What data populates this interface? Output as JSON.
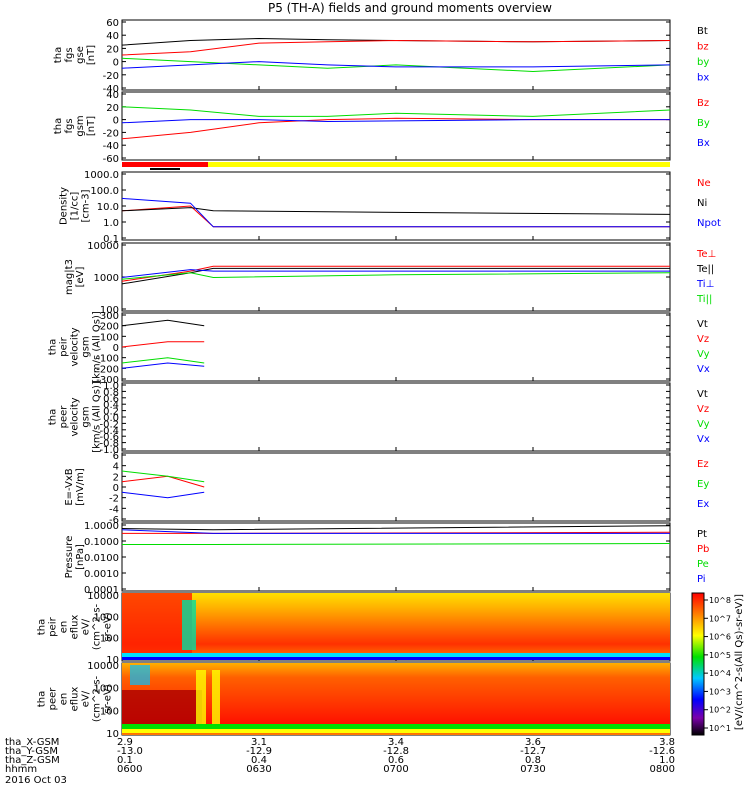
{
  "title": "P5 (TH-A) fields and ground moments overview",
  "date_label": "2016 Oct 03",
  "colors": {
    "black": "#000000",
    "red": "#ff0000",
    "green": "#00dd00",
    "blue": "#0000ff",
    "purple": "#9900cc",
    "yellow": "#ffff00"
  },
  "panels": [
    {
      "id": "fgs-btot",
      "ylabel": [
        "tha",
        "fgs",
        "gse",
        "[nT]"
      ],
      "ticks": [
        "60",
        "40",
        "20",
        "0",
        "-20",
        "-40"
      ],
      "legend": [
        {
          "label": "Bt",
          "color": "#000000"
        },
        {
          "label": "bz",
          "color": "#ff0000"
        },
        {
          "label": "by",
          "color": "#00dd00"
        },
        {
          "label": "bx",
          "color": "#0000ff"
        }
      ]
    },
    {
      "id": "fgs-gsm",
      "ylabel": [
        "tha",
        "fgs",
        "gsm",
        "[nT]"
      ],
      "ticks": [
        "40",
        "20",
        "0",
        "-20",
        "-40",
        "-60"
      ],
      "legend": [
        {
          "label": "Bz",
          "color": "#ff0000"
        },
        {
          "label": "By",
          "color": "#00dd00"
        },
        {
          "label": "Bx",
          "color": "#0000ff"
        }
      ]
    },
    {
      "id": "density",
      "ylabel": [
        "Density",
        "[1/cc]",
        "[cm-3]"
      ],
      "ticks": [
        "1000.0",
        "100.0",
        "10.0",
        "1.0",
        "0.1"
      ],
      "legend": [
        {
          "label": "Ne",
          "color": "#ff0000"
        },
        {
          "label": "Ni",
          "color": "#000000"
        },
        {
          "label": "Npot",
          "color": "#0000ff"
        }
      ]
    },
    {
      "id": "temperature",
      "ylabel": [
        "mag|t3",
        "[eV]"
      ],
      "ticks": [
        "10000",
        "1000",
        "100"
      ],
      "legend": [
        {
          "label": "Te⊥",
          "color": "#ff0000"
        },
        {
          "label": "Te||",
          "color": "#000000"
        },
        {
          "label": "Ti⊥",
          "color": "#0000ff"
        },
        {
          "label": "Ti||",
          "color": "#00dd00"
        }
      ]
    },
    {
      "id": "peir-velocity",
      "ylabel": [
        "tha",
        "peir",
        "velocity",
        "gsm",
        "[km/s (All Qs)]"
      ],
      "ticks": [
        "300",
        "200",
        "100",
        "0",
        "-100",
        "-200",
        "-300"
      ],
      "legend": [
        {
          "label": "Vt",
          "color": "#000000"
        },
        {
          "label": "Vz",
          "color": "#ff0000"
        },
        {
          "label": "Vy",
          "color": "#00dd00"
        },
        {
          "label": "Vx",
          "color": "#0000ff"
        }
      ]
    },
    {
      "id": "peer-velocity",
      "ylabel": [
        "tha",
        "peer",
        "velocity",
        "gsm",
        "[km/s (All Qs)]"
      ],
      "ticks": [
        "1.0",
        "0.8",
        "0.6",
        "0.4",
        "0.2",
        "0.0",
        "-0.2",
        "-0.4",
        "-0.6",
        "-0.8",
        "-1.0"
      ],
      "legend": [
        {
          "label": "Vt",
          "color": "#000000"
        },
        {
          "label": "Vz",
          "color": "#ff0000"
        },
        {
          "label": "Vy",
          "color": "#00dd00"
        },
        {
          "label": "Vx",
          "color": "#0000ff"
        }
      ]
    },
    {
      "id": "efield",
      "ylabel": [
        "E=-VxB",
        "[mV/m]"
      ],
      "ticks": [
        "6",
        "4",
        "2",
        "0",
        "-2",
        "-4",
        "-6"
      ],
      "legend": [
        {
          "label": "Ez",
          "color": "#ff0000"
        },
        {
          "label": "Ey",
          "color": "#00dd00"
        },
        {
          "label": "Ex",
          "color": "#0000ff"
        }
      ]
    },
    {
      "id": "pressure",
      "ylabel": [
        "Pressure",
        "[nPa]"
      ],
      "ticks": [
        "1.0000",
        "0.1000",
        "0.0100",
        "0.0010",
        "0.0001"
      ],
      "legend": [
        {
          "label": "Pt",
          "color": "#000000"
        },
        {
          "label": "Pb",
          "color": "#ff0000"
        },
        {
          "label": "Pe",
          "color": "#00dd00"
        },
        {
          "label": "Pi",
          "color": "#0000ff"
        }
      ]
    },
    {
      "id": "peir-eflux",
      "ylabel": [
        "tha",
        "peir",
        "en",
        "eflux",
        "eV/",
        "(cm^2-s-",
        "sr-eV)"
      ],
      "ticks": [
        "10000",
        "1000",
        "100",
        "10"
      ],
      "legend": []
    },
    {
      "id": "peer-eflux",
      "ylabel": [
        "tha",
        "peer",
        "en",
        "eflux",
        "eV/",
        "(cm^2-s-",
        "sr-eV)"
      ],
      "ticks": [
        "10000",
        "1000",
        "100",
        "10"
      ],
      "legend": []
    }
  ],
  "colorbar": {
    "label": "[eV/(cm^2-s(All Qs)-sr-eV)]",
    "ticks": [
      "10^8",
      "10^7",
      "10^6",
      "10^5",
      "10^4",
      "10^3",
      "10^2",
      "10^1"
    ]
  },
  "axis_rows": {
    "labels": [
      "tha_X-GSM",
      "tha_Y-GSM",
      "tha_Z-GSM",
      "hhmm"
    ],
    "columns": [
      [
        "2.9",
        "-13.0",
        "0.1",
        "0600"
      ],
      [
        "3.1",
        "-12.9",
        "0.4",
        "0630"
      ],
      [
        "3.4",
        "-12.8",
        "0.6",
        "0700"
      ],
      [
        "3.6",
        "-12.7",
        "0.8",
        "0730"
      ],
      [
        "3.8",
        "-12.6",
        "1.0",
        "0800"
      ]
    ]
  },
  "chart_data": {
    "type": "line",
    "title": "P5 (TH-A) fields and ground moments overview",
    "x_label": "hhmm",
    "x_ticks": [
      "0600",
      "0630",
      "0700",
      "0730",
      "0800"
    ],
    "panels": [
      {
        "name": "tha fgs gse",
        "ylim": [
          -40,
          60
        ],
        "series": [
          {
            "name": "Bt",
            "x": [
              "0600",
              "0615",
              "0630",
              "0645",
              "0700",
              "0730",
              "0800"
            ],
            "values": [
              25,
              32,
              35,
              33,
              32,
              30,
              32
            ]
          },
          {
            "name": "bz",
            "x": [
              "0600",
              "0615",
              "0630",
              "0645",
              "0700",
              "0730",
              "0800"
            ],
            "values": [
              10,
              15,
              28,
              30,
              32,
              30,
              32
            ]
          },
          {
            "name": "by",
            "x": [
              "0600",
              "0615",
              "0630",
              "0645",
              "0700",
              "0730",
              "0800"
            ],
            "values": [
              5,
              0,
              -5,
              -10,
              -5,
              -15,
              -5
            ]
          },
          {
            "name": "bx",
            "x": [
              "0600",
              "0615",
              "0630",
              "0645",
              "0700",
              "0730",
              "0800"
            ],
            "values": [
              -10,
              -5,
              0,
              -5,
              -8,
              -8,
              -5
            ]
          }
        ]
      },
      {
        "name": "tha fgs gsm",
        "ylim": [
          -60,
          40
        ],
        "series": [
          {
            "name": "Bz",
            "x": [
              "0600",
              "0615",
              "0630",
              "0645",
              "0700",
              "0730",
              "0800"
            ],
            "values": [
              -30,
              -20,
              -5,
              0,
              2,
              0,
              0
            ]
          },
          {
            "name": "By",
            "x": [
              "0600",
              "0615",
              "0630",
              "0645",
              "0700",
              "0730",
              "0800"
            ],
            "values": [
              20,
              15,
              5,
              5,
              10,
              5,
              15
            ]
          },
          {
            "name": "Bx",
            "x": [
              "0600",
              "0615",
              "0630",
              "0645",
              "0700",
              "0730",
              "0800"
            ],
            "values": [
              -5,
              0,
              0,
              -3,
              -2,
              0,
              0
            ]
          }
        ]
      },
      {
        "name": "Density",
        "ylim": [
          0.1,
          1000
        ],
        "scale": "log",
        "series": [
          {
            "name": "Ne",
            "x": [
              "0600",
              "0615",
              "0620",
              "0700",
              "0800"
            ],
            "values": [
              5,
              10,
              0.5,
              0.5,
              0.5
            ]
          },
          {
            "name": "Ni",
            "x": [
              "0600",
              "0615",
              "0620",
              "0700",
              "0800"
            ],
            "values": [
              5,
              8,
              5,
              4,
              3
            ]
          },
          {
            "name": "Npot",
            "x": [
              "0600",
              "0615",
              "0620",
              "0700",
              "0800"
            ],
            "values": [
              30,
              15,
              0.5,
              0.5,
              0.5
            ]
          }
        ]
      },
      {
        "name": "mag|t3",
        "ylim": [
          10,
          10000
        ],
        "scale": "log",
        "series": [
          {
            "name": "Te⊥",
            "x": [
              "0600",
              "0615",
              "0620",
              "0700",
              "0800"
            ],
            "values": [
              200,
              600,
              1000,
              1000,
              1000
            ]
          },
          {
            "name": "Te||",
            "x": [
              "0600",
              "0615",
              "0620",
              "0700",
              "0800"
            ],
            "values": [
              150,
              500,
              800,
              800,
              800
            ]
          },
          {
            "name": "Ti⊥",
            "x": [
              "0600",
              "0615",
              "0620",
              "0700",
              "0800"
            ],
            "values": [
              300,
              700,
              600,
              600,
              600
            ]
          },
          {
            "name": "Ti||",
            "x": [
              "0600",
              "0615",
              "0620",
              "0700",
              "0800"
            ],
            "values": [
              250,
              500,
              300,
              400,
              500
            ]
          }
        ]
      },
      {
        "name": "tha peir velocity gsm",
        "ylim": [
          -300,
          300
        ],
        "series": [
          {
            "name": "Vt",
            "x": [
              "0600",
              "0610",
              "0618"
            ],
            "values": [
              200,
              250,
              200
            ]
          },
          {
            "name": "Vz",
            "x": [
              "0600",
              "0610",
              "0618"
            ],
            "values": [
              0,
              50,
              50
            ]
          },
          {
            "name": "Vy",
            "x": [
              "0600",
              "0610",
              "0618"
            ],
            "values": [
              -150,
              -100,
              -150
            ]
          },
          {
            "name": "Vx",
            "x": [
              "0600",
              "0610",
              "0618"
            ],
            "values": [
              -200,
              -150,
              -180
            ]
          }
        ]
      },
      {
        "name": "tha peer velocity gsm",
        "ylim": [
          -1,
          1
        ],
        "series": []
      },
      {
        "name": "E=-VxB",
        "ylim": [
          -6,
          6
        ],
        "series": [
          {
            "name": "Ez",
            "x": [
              "0600",
              "0610",
              "0618"
            ],
            "values": [
              1,
              2,
              0
            ]
          },
          {
            "name": "Ey",
            "x": [
              "0600",
              "0610",
              "0618"
            ],
            "values": [
              3,
              2,
              1
            ]
          },
          {
            "name": "Ex",
            "x": [
              "0600",
              "0610",
              "0618"
            ],
            "values": [
              -1,
              -2,
              -1
            ]
          }
        ]
      },
      {
        "name": "Pressure",
        "ylim": [
          0.0001,
          1
        ],
        "scale": "log",
        "series": [
          {
            "name": "Pt",
            "x": [
              "0600",
              "0620",
              "0800"
            ],
            "values": [
              0.6,
              0.5,
              0.9
            ]
          },
          {
            "name": "Pb",
            "x": [
              "0600",
              "0620",
              "0800"
            ],
            "values": [
              0.3,
              0.3,
              0.35
            ]
          },
          {
            "name": "Pe",
            "x": [
              "0600",
              "0620",
              "0800"
            ],
            "values": [
              0.06,
              0.06,
              0.07
            ]
          },
          {
            "name": "Pi",
            "x": [
              "0600",
              "0620",
              "0800"
            ],
            "values": [
              0.5,
              0.3,
              0.3
            ]
          }
        ]
      },
      {
        "name": "tha peir en eflux",
        "type": "heatmap",
        "ylim": [
          5,
          30000
        ]
      },
      {
        "name": "tha peer en eflux",
        "type": "heatmap",
        "ylim": [
          5,
          30000
        ]
      }
    ]
  }
}
